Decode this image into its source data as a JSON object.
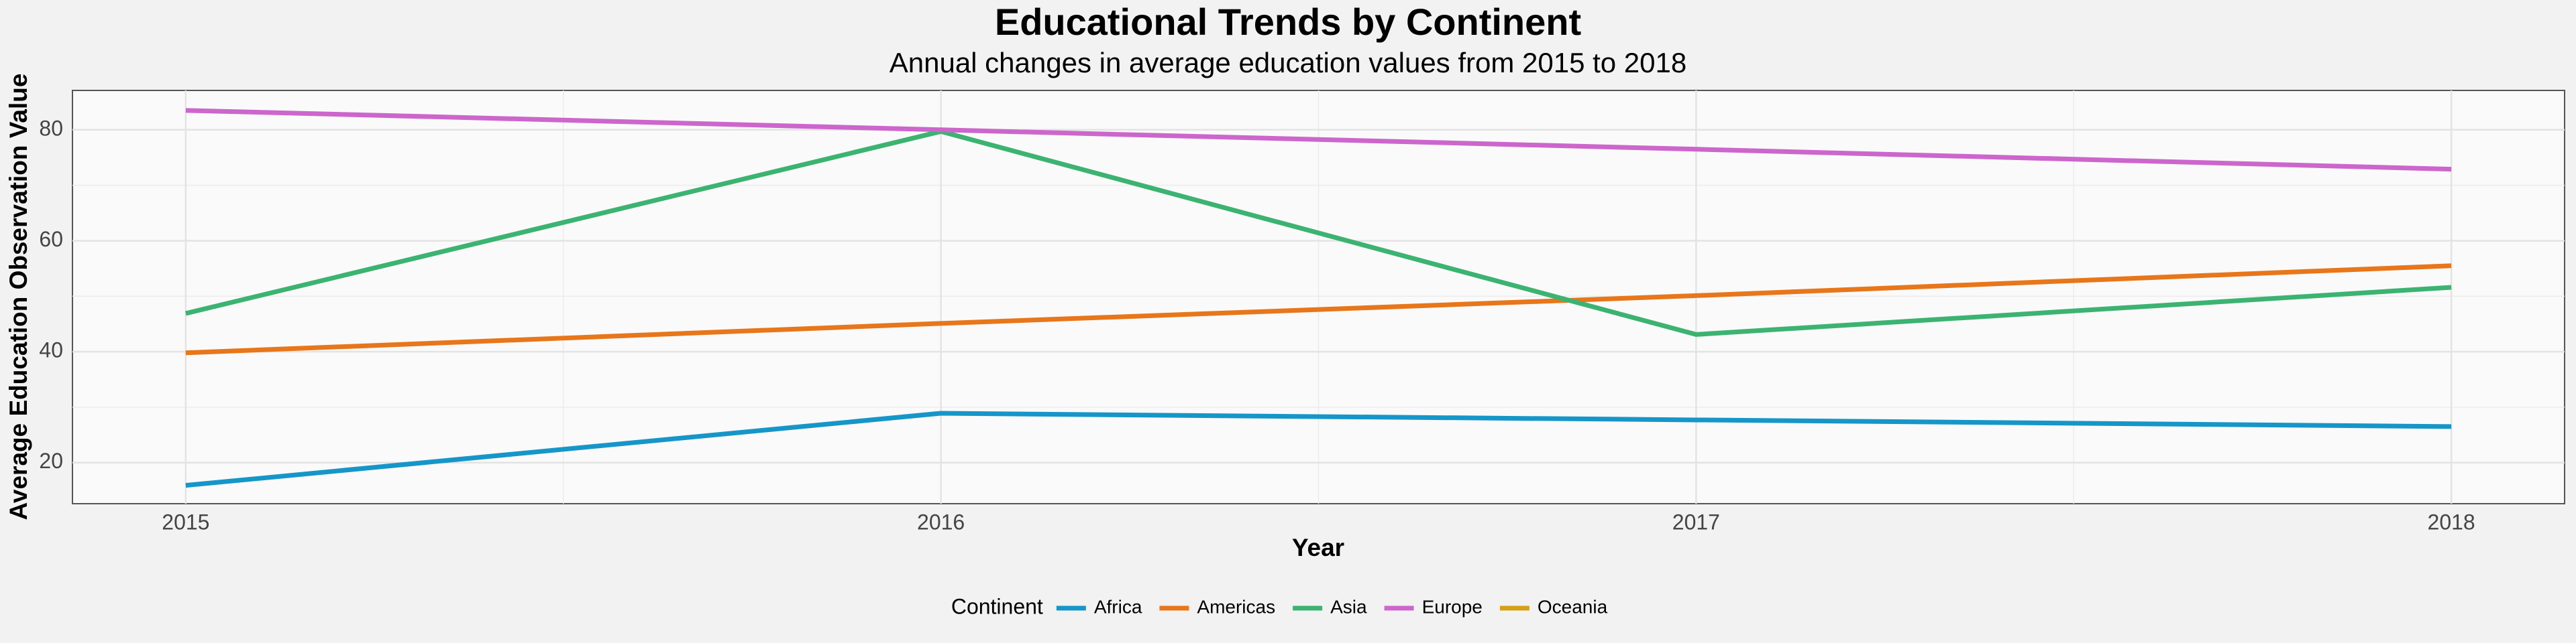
{
  "chart_data": {
    "type": "line",
    "title": "Educational Trends by Continent",
    "subtitle": "Annual changes in average education values from 2015 to 2018",
    "x_label": "Year",
    "y_label": "Average Education Observation Value",
    "x": [
      2015,
      2016,
      2017,
      2018
    ],
    "series": [
      {
        "name": "Africa",
        "color": "#1696c8",
        "values": [
          15.9,
          28.9,
          27.7,
          26.5
        ]
      },
      {
        "name": "Americas",
        "color": "#e8761a",
        "values": [
          39.8,
          45.1,
          50.1,
          55.5
        ]
      },
      {
        "name": "Asia",
        "color": "#3cb371",
        "values": [
          46.9,
          79.7,
          43.1,
          51.6
        ]
      },
      {
        "name": "Europe",
        "color": "#cc66cc",
        "values": [
          83.5,
          80.0,
          76.5,
          72.9
        ]
      },
      {
        "name": "Oceania",
        "color": "#d4a017",
        "values": [
          null,
          null,
          null,
          null
        ]
      }
    ],
    "xlim": [
      2014.85,
      2018.15
    ],
    "xticks": [
      2015,
      2016,
      2017,
      2018
    ],
    "ylim": [
      12.6,
      87.1
    ],
    "yticks": [
      20,
      40,
      60,
      80
    ],
    "grid": true,
    "legend_title": "Continent",
    "legend_position": "bottom"
  }
}
